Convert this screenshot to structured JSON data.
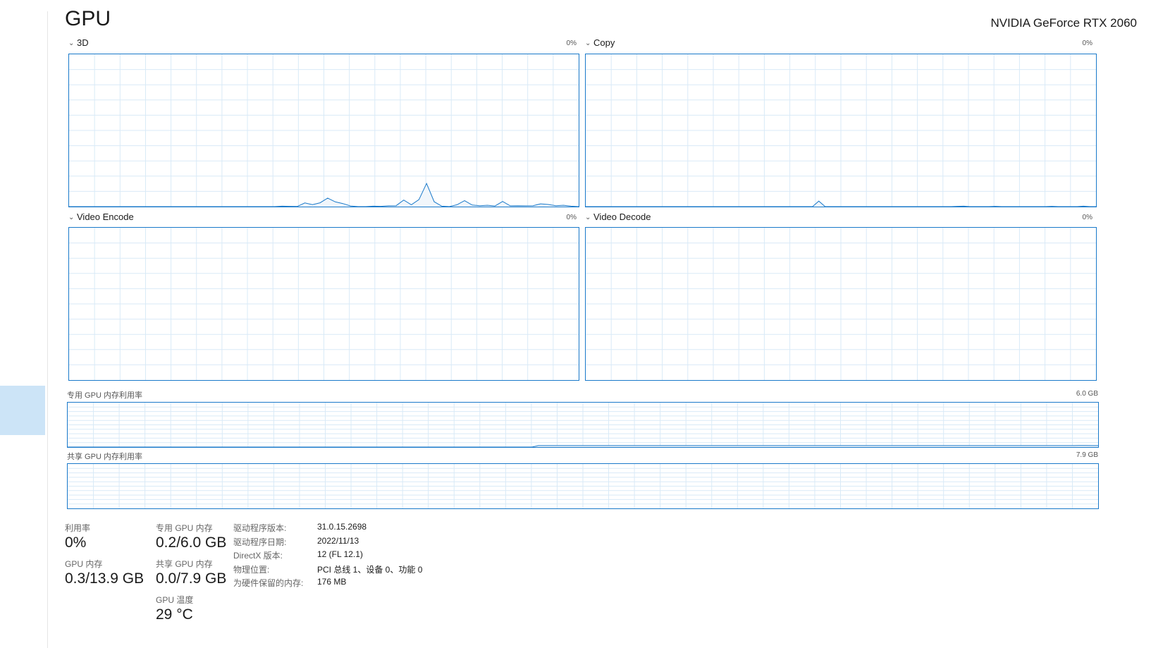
{
  "page": {
    "title": "GPU",
    "device": "NVIDIA GeForce RTX 2060"
  },
  "graphs": [
    {
      "label": "3D",
      "percent": "0%"
    },
    {
      "label": "Copy",
      "percent": "0%"
    },
    {
      "label": "Video Encode",
      "percent": "0%"
    },
    {
      "label": "Video Decode",
      "percent": "0%"
    }
  ],
  "memory_graphs": [
    {
      "label": "专用 GPU 内存利用率",
      "max": "6.0 GB"
    },
    {
      "label": "共享 GPU 内存利用率",
      "max": "7.9 GB"
    }
  ],
  "stats": {
    "utilization": {
      "label": "利用率",
      "value": "0%"
    },
    "dedicated": {
      "label": "专用 GPU 内存",
      "value": "0.2/6.0 GB"
    },
    "gpu_memory": {
      "label": "GPU 内存",
      "value": "0.3/13.9 GB"
    },
    "shared": {
      "label": "共享 GPU 内存",
      "value": "0.0/7.9 GB"
    },
    "temperature": {
      "label": "GPU 温度",
      "value": "29 °C"
    }
  },
  "properties": [
    {
      "key": "驱动程序版本:",
      "value": "31.0.15.2698"
    },
    {
      "key": "驱动程序日期:",
      "value": "2022/11/13"
    },
    {
      "key": "DirectX 版本:",
      "value": "12 (FL 12.1)"
    },
    {
      "key": "物理位置:",
      "value": "PCI 总线 1、设备 0、功能 0"
    },
    {
      "key": "为硬件保留的内存:",
      "value": "176 MB"
    }
  ],
  "series": {
    "3d": [
      0,
      0,
      0,
      0,
      0,
      0,
      0,
      0,
      0,
      0,
      0,
      0,
      0,
      0,
      0,
      0,
      0,
      0,
      0,
      0,
      0,
      0,
      0,
      0,
      0,
      0,
      0,
      0,
      0.3,
      0.2,
      0.1,
      2.4,
      1.3,
      2.5,
      5.6,
      3.1,
      2.0,
      0.4,
      0,
      0,
      0.3,
      0.2,
      0.5,
      0.6,
      4.3,
      1.2,
      4.6,
      15.2,
      3.2,
      0.3,
      0,
      1.2,
      3.9,
      1.0,
      0.6,
      0.9,
      0.4,
      3.4,
      0.5,
      0.6,
      0.5,
      0.6,
      1.8,
      1.4,
      0.6,
      0.9,
      0.3,
      0
    ],
    "copy": [
      0,
      0,
      0,
      0,
      0,
      0,
      0,
      0,
      0,
      0,
      0,
      0,
      0,
      0,
      0,
      0,
      0,
      0,
      0,
      0,
      0,
      0,
      0,
      0,
      0,
      0,
      0,
      0,
      0,
      0,
      0,
      0,
      0,
      0,
      0,
      0,
      0,
      3.6,
      0,
      0,
      0,
      0,
      0,
      0,
      0,
      0,
      0,
      0,
      0,
      0,
      0,
      0,
      0,
      0,
      0,
      0,
      0,
      0,
      0,
      0.2,
      0.3,
      0,
      0,
      0,
      0,
      0.2,
      0,
      0,
      0,
      0,
      0,
      0,
      0,
      0,
      0.2,
      0,
      0,
      0,
      0,
      0.3,
      0,
      0
    ],
    "video_encode": [],
    "video_decode": [],
    "dedicated_mem": [
      0,
      0,
      0,
      0,
      0,
      0,
      0,
      0,
      0,
      0,
      0,
      0,
      0,
      0,
      0,
      0,
      0,
      0,
      0,
      0,
      0,
      0,
      0,
      0,
      0,
      0,
      0,
      0,
      0,
      0,
      0,
      0,
      0,
      0,
      0,
      0,
      0,
      0,
      0,
      0,
      0,
      0,
      0,
      0,
      0,
      0,
      0,
      0,
      0,
      0,
      0,
      0,
      0,
      0,
      0,
      0,
      0,
      0,
      0,
      0,
      0,
      0,
      0,
      0,
      0,
      0,
      0,
      0,
      0,
      0,
      0,
      0,
      0,
      0,
      3.3,
      3.3,
      3.3,
      3.3,
      3.3,
      3.3,
      3.3,
      3.3,
      3.3,
      3.3,
      3.3,
      3.3,
      3.3,
      3.3,
      3.3,
      3.3,
      3.3,
      3.3,
      3.3,
      3.3,
      3.3,
      3.3,
      3.3,
      3.3,
      3.3,
      3.3,
      3.3,
      3.3,
      3.3,
      3.3,
      3.3,
      3.3,
      3.3,
      3.3,
      3.3,
      3.3,
      3.3,
      3.3,
      3.3,
      3.3,
      3.3,
      3.3,
      3.3,
      3.3,
      3.3,
      3.3,
      3.3,
      3.3,
      3.3,
      3.3,
      3.3,
      3.3,
      3.3,
      3.3,
      3.3,
      3.3,
      3.3,
      3.3,
      3.3,
      3.3,
      3.3,
      3.3,
      3.3,
      3.3,
      3.3,
      3.3,
      3.3,
      3.3,
      3.3,
      3.3,
      3.3,
      3.3,
      3.3,
      3.3,
      3.3,
      3.3,
      3.3,
      3.3,
      3.3,
      3.3,
      3.3,
      3.3,
      3.3,
      3.3,
      3.3,
      3.6,
      3.6,
      3.3,
      3.3
    ],
    "shared_mem": []
  },
  "colors": {
    "line": "#1979ca",
    "fill": "#f1f6fb",
    "grid": "#d9eaf7",
    "selected_sidebar": "#cce4f7"
  }
}
